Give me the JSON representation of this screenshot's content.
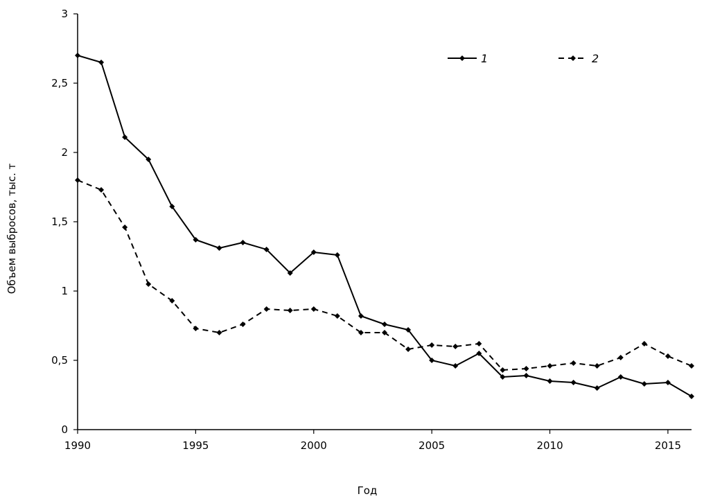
{
  "chart_data": {
    "type": "line",
    "title": "",
    "xlabel": "Год",
    "ylabel": "Объем выбросов, тыс. т",
    "xlim": [
      1990,
      2016
    ],
    "ylim": [
      0,
      3
    ],
    "x_ticks": [
      1990,
      1995,
      2000,
      2005,
      2010,
      2015
    ],
    "x_tick_labels": [
      "1990",
      "1995",
      "2000",
      "2005",
      "2010",
      "2015"
    ],
    "y_ticks": [
      0,
      0.5,
      1,
      1.5,
      2,
      2.5,
      3
    ],
    "y_tick_labels": [
      "0",
      "0,5",
      "1",
      "1,5",
      "2",
      "2,5",
      "3"
    ],
    "grid": false,
    "legend_position": "top-right",
    "x": [
      1990,
      1991,
      1992,
      1993,
      1994,
      1995,
      1996,
      1997,
      1998,
      1999,
      2000,
      2001,
      2002,
      2003,
      2004,
      2005,
      2006,
      2007,
      2008,
      2009,
      2010,
      2011,
      2012,
      2013,
      2014,
      2015,
      2016
    ],
    "series": [
      {
        "name": "1",
        "line_style": "solid",
        "color": "#000000",
        "values": [
          2.7,
          2.65,
          2.11,
          1.95,
          1.61,
          1.37,
          1.31,
          1.35,
          1.3,
          1.13,
          1.28,
          1.26,
          0.82,
          0.76,
          0.72,
          0.5,
          0.46,
          0.55,
          0.38,
          0.39,
          0.35,
          0.34,
          0.3,
          0.38,
          0.33,
          0.34,
          0.24
        ]
      },
      {
        "name": "2",
        "line_style": "dashed",
        "color": "#000000",
        "values": [
          1.8,
          1.73,
          1.46,
          1.05,
          0.93,
          0.73,
          0.7,
          0.76,
          0.87,
          0.86,
          0.87,
          0.82,
          0.7,
          0.7,
          0.58,
          0.61,
          0.6,
          0.62,
          0.43,
          0.44,
          0.46,
          0.48,
          0.46,
          0.52,
          0.62,
          0.53,
          0.46
        ]
      }
    ]
  }
}
